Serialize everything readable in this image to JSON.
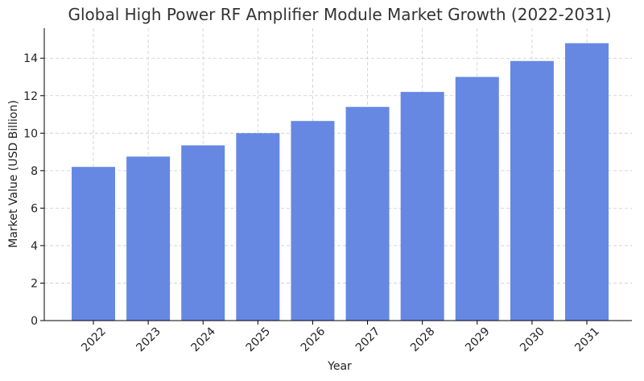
{
  "chart_data": {
    "type": "bar",
    "title": "Global High Power RF Amplifier Module Market Growth (2022-2031)",
    "xlabel": "Year",
    "ylabel": "Market Value (USD Billion)",
    "categories": [
      "2022",
      "2023",
      "2024",
      "2025",
      "2026",
      "2027",
      "2028",
      "2029",
      "2030",
      "2031"
    ],
    "values": [
      8.2,
      8.75,
      9.35,
      10.0,
      10.65,
      11.4,
      12.2,
      13.0,
      13.85,
      14.8
    ],
    "ylim": [
      0,
      15.6
    ],
    "yticks": [
      0,
      2,
      4,
      6,
      8,
      10,
      12,
      14
    ],
    "grid": true,
    "bar_color": "#6688e3"
  }
}
